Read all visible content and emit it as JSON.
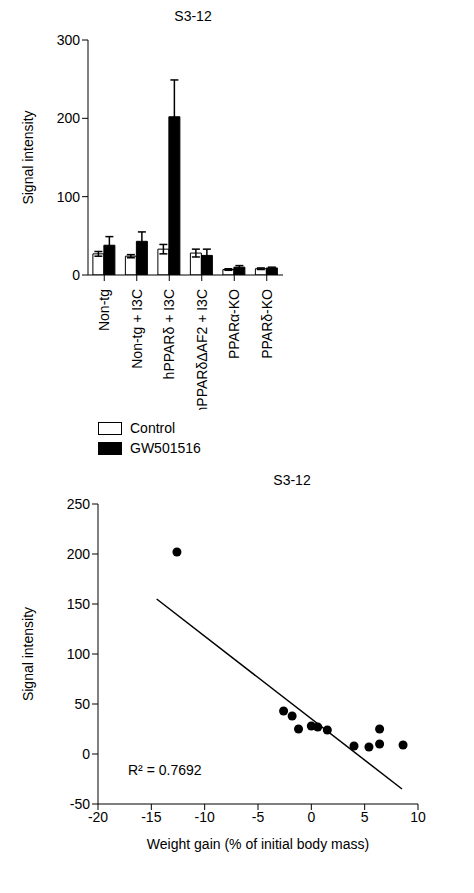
{
  "chart_data": [
    {
      "type": "bar",
      "title": "S3-12",
      "y_label": "Signal intensity",
      "categories": [
        "Non-tg",
        "Non-tg + I3C",
        "hPPARδ + I3C",
        "hPPARδΔAF2 + I3C",
        "PPARα-KO",
        "PPARδ-KO"
      ],
      "series": [
        {
          "name": "Control",
          "color": "#ffffff",
          "values": [
            27,
            24,
            33,
            28,
            7,
            8
          ],
          "errors": [
            3,
            2,
            6,
            5,
            1,
            1
          ]
        },
        {
          "name": "GW501516",
          "color": "#000000",
          "values": [
            38,
            43,
            202,
            25,
            10,
            9
          ],
          "errors": [
            11,
            12,
            47,
            8,
            2,
            1
          ]
        }
      ],
      "ylim": [
        0,
        300
      ],
      "yticks": [
        0,
        100,
        200,
        300
      ],
      "legend": "bottom"
    },
    {
      "type": "scatter",
      "title": "S3-12",
      "y_label": "Signal intensity",
      "x_label": "Weight gain (% of initial body mass)",
      "x": [
        -12.6,
        -2.6,
        -1.8,
        -1.2,
        0,
        0.6,
        1.5,
        4.0,
        5.4,
        6.4,
        6.4,
        8.6
      ],
      "values": [
        202,
        43,
        38,
        25,
        28,
        27,
        24,
        8,
        7,
        10,
        25,
        9
      ],
      "color": "#000000",
      "trendline": {
        "x": [
          -14.5,
          8.5
        ],
        "y": [
          155,
          -35
        ]
      },
      "annotations": [
        "R² = 0.7692"
      ],
      "xlim": [
        -20,
        10
      ],
      "xticks": [
        -20,
        -15,
        -10,
        -5,
        0,
        5,
        10
      ],
      "ylim": [
        -50,
        250
      ],
      "yticks": [
        -50,
        0,
        50,
        100,
        150,
        200,
        250
      ]
    }
  ]
}
